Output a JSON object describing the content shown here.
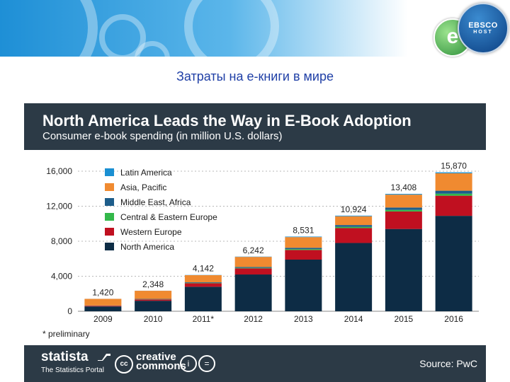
{
  "slide": {
    "subtitle": "Затраты на е-книги в мире",
    "logo_e": "e",
    "logo_ebsco": "EBSCO",
    "logo_ebsco_sub": "HOST"
  },
  "chart_data": {
    "type": "bar",
    "stacked": true,
    "title": "North America Leads the Way in E-Book Adoption",
    "subtitle": "Consumer e-book spending (in million U.S. dollars)",
    "categories": [
      "2009",
      "2010",
      "2011*",
      "2012",
      "2013",
      "2014",
      "2015",
      "2016"
    ],
    "totals": [
      1420,
      2348,
      4142,
      6242,
      8531,
      10924,
      13408,
      15870
    ],
    "total_labels": [
      "1,420",
      "2,348",
      "4,142",
      "6,242",
      "8,531",
      "10,924",
      "13,408",
      "15,870"
    ],
    "series": [
      {
        "name": "North America",
        "color": "#0d2c45",
        "values": [
          550,
          1200,
          2800,
          4200,
          5900,
          7800,
          9400,
          10900
        ]
      },
      {
        "name": "Western Europe",
        "color": "#c01020",
        "values": [
          80,
          150,
          400,
          700,
          1100,
          1700,
          2000,
          2300
        ]
      },
      {
        "name": "Central & Eastern Europe",
        "color": "#33b84a",
        "values": [
          10,
          20,
          40,
          60,
          100,
          140,
          180,
          230
        ]
      },
      {
        "name": "Middle East, Africa",
        "color": "#1e5d8a",
        "values": [
          20,
          40,
          70,
          100,
          150,
          210,
          270,
          340
        ]
      },
      {
        "name": "Asia, Pacific",
        "color": "#f08a30",
        "values": [
          755,
          930,
          810,
          1150,
          1220,
          1000,
          1470,
          1990
        ]
      },
      {
        "name": "Latin America",
        "color": "#1a8fd2",
        "values": [
          5,
          8,
          22,
          32,
          61,
          74,
          88,
          110
        ]
      }
    ],
    "legend_order": [
      "Latin America",
      "Asia, Pacific",
      "Middle East, Africa",
      "Central & Eastern Europe",
      "Western Europe",
      "North America"
    ],
    "yticks": [
      0,
      4000,
      8000,
      12000,
      16000
    ],
    "ytick_labels": [
      "0",
      "4,000",
      "8,000",
      "12,000",
      "16,000"
    ],
    "ylim": [
      0,
      16000
    ],
    "grid": true,
    "legend_position": "top-left",
    "footnote": "* preliminary"
  },
  "footer": {
    "brand": "statista",
    "tagline": "The Statistics Portal",
    "cc_mark": "cc",
    "cc_line1": "creative",
    "cc_line2": "commons",
    "license_by": "i",
    "license_nd": "=",
    "source": "Source: PwC"
  }
}
